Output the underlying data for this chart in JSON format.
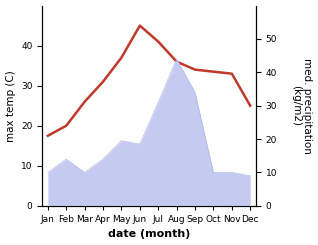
{
  "months": [
    "Jan",
    "Feb",
    "Mar",
    "Apr",
    "May",
    "Jun",
    "Jul",
    "Aug",
    "Sep",
    "Oct",
    "Nov",
    "Dec"
  ],
  "max_temp": [
    17.5,
    20.0,
    26.0,
    31.0,
    37.0,
    45.0,
    41.0,
    36.0,
    34.0,
    33.5,
    33.0,
    25.0
  ],
  "precipitation": [
    10,
    14,
    10,
    14,
    19.5,
    18.5,
    31,
    44,
    34,
    10,
    10,
    9
  ],
  "temp_color": "#c0392b",
  "precip_fill_color": "#c5caf0",
  "precip_edge_color": "#b0b8e8",
  "background_color": "#ffffff",
  "ylabel_left": "max temp (C)",
  "ylabel_right": "med. precipitation\n(kg/m2)",
  "xlabel": "date (month)",
  "ylim_left": [
    0,
    50
  ],
  "ylim_right": [
    0,
    60
  ],
  "yticks_left": [
    0,
    10,
    20,
    30,
    40
  ],
  "yticks_right": [
    0,
    10,
    20,
    30,
    40,
    50
  ],
  "label_fontsize": 7.5,
  "tick_fontsize": 6.5,
  "xlabel_fontsize": 8,
  "linewidth": 1.8
}
